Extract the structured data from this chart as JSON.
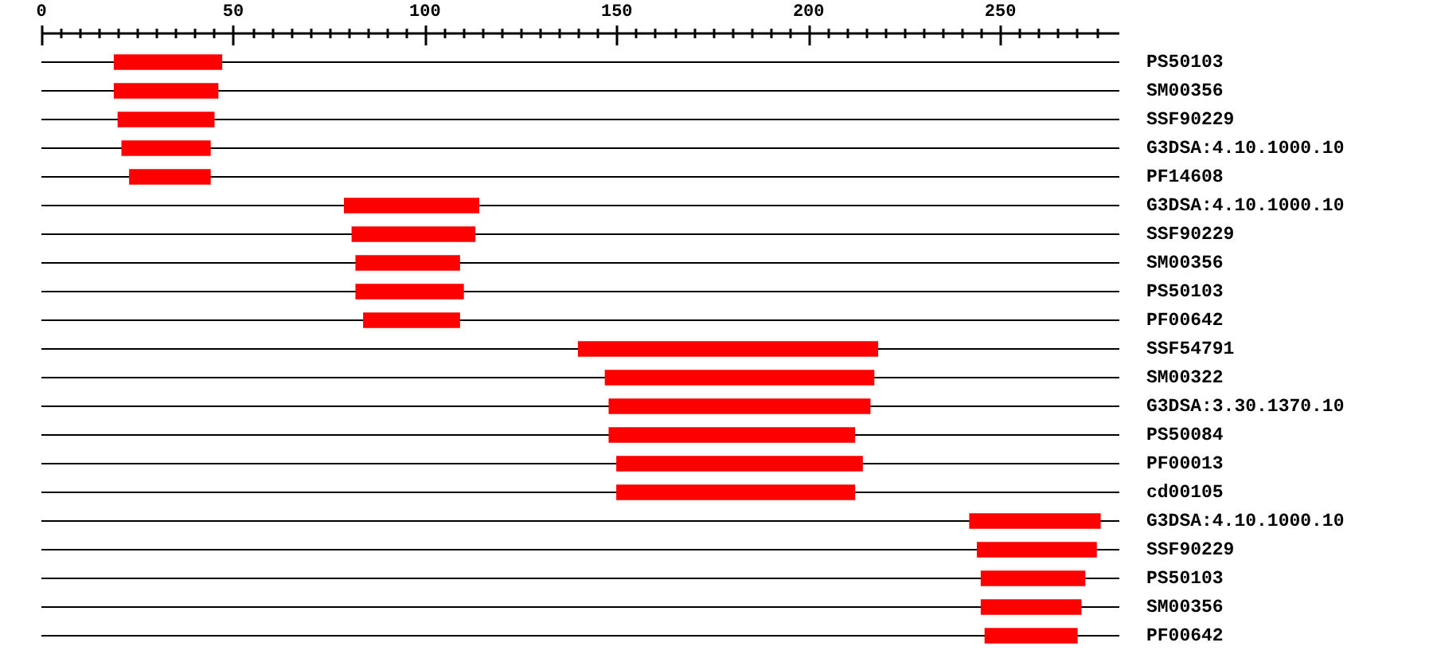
{
  "chart_data": {
    "type": "bar",
    "orientation": "horizontal",
    "categories": [
      "PS50103",
      "SM00356",
      "SSF90229",
      "G3DSA:4.10.1000.10",
      "PF14608",
      "G3DSA:4.10.1000.10",
      "SSF90229",
      "SM00356",
      "PS50103",
      "PF00642",
      "SSF54791",
      "SM00322",
      "G3DSA:3.30.1370.10",
      "PS50084",
      "PF00013",
      "cd00105",
      "G3DSA:4.10.1000.10",
      "SSF90229",
      "PS50103",
      "SM00356",
      "PF00642"
    ],
    "base": [
      19,
      19,
      20,
      21,
      23,
      79,
      81,
      82,
      82,
      84,
      140,
      147,
      148,
      148,
      150,
      150,
      242,
      244,
      245,
      245,
      246
    ],
    "values": [
      28,
      27,
      25,
      23,
      21,
      35,
      32,
      27,
      28,
      25,
      78,
      70,
      68,
      64,
      64,
      62,
      34,
      31,
      27,
      26,
      24
    ],
    "color": "#ff0000",
    "xlim": [
      0,
      281
    ],
    "xticks": [
      0,
      {
        "value": 5,
        "label": null
      },
      {
        "value": 10,
        "label": null
      },
      {
        "value": 15,
        "label": null
      },
      {
        "value": 20,
        "label": null
      },
      {
        "value": 25,
        "label": null
      },
      {
        "value": 30,
        "label": null
      },
      {
        "value": 35,
        "label": null
      },
      {
        "value": 40,
        "label": null
      },
      {
        "value": 45,
        "label": null
      },
      50,
      {
        "value": 55,
        "label": null
      },
      {
        "value": 60,
        "label": null
      },
      {
        "value": 65,
        "label": null
      },
      {
        "value": 70,
        "label": null
      },
      {
        "value": 75,
        "label": null
      },
      {
        "value": 80,
        "label": null
      },
      {
        "value": 85,
        "label": null
      },
      {
        "value": 90,
        "label": null
      },
      {
        "value": 95,
        "label": null
      },
      100,
      {
        "value": 105,
        "label": null
      },
      {
        "value": 110,
        "label": null
      },
      {
        "value": 115,
        "label": null
      },
      {
        "value": 120,
        "label": null
      },
      {
        "value": 125,
        "label": null
      },
      {
        "value": 130,
        "label": null
      },
      {
        "value": 135,
        "label": null
      },
      {
        "value": 140,
        "label": null
      },
      {
        "value": 145,
        "label": null
      },
      150,
      {
        "value": 155,
        "label": null
      },
      {
        "value": 160,
        "label": null
      },
      {
        "value": 165,
        "label": null
      },
      {
        "value": 170,
        "label": null
      },
      {
        "value": 175,
        "label": null
      },
      {
        "value": 180,
        "label": null
      },
      {
        "value": 185,
        "label": null
      },
      {
        "value": 190,
        "label": null
      },
      {
        "value": 195,
        "label": null
      },
      200,
      {
        "value": 205,
        "label": null
      },
      {
        "value": 210,
        "label": null
      },
      {
        "value": 215,
        "label": null
      },
      {
        "value": 220,
        "label": null
      },
      {
        "value": 225,
        "label": null
      },
      {
        "value": 230,
        "label": null
      },
      {
        "value": 235,
        "label": null
      },
      {
        "value": 240,
        "label": null
      },
      {
        "value": 245,
        "label": null
      },
      250,
      {
        "value": 255,
        "label": null
      },
      {
        "value": 260,
        "label": null
      },
      {
        "value": 265,
        "label": null
      },
      {
        "value": 270,
        "label": null
      },
      {
        "value": 275,
        "label": null
      }
    ],
    "grid": "y"
  }
}
